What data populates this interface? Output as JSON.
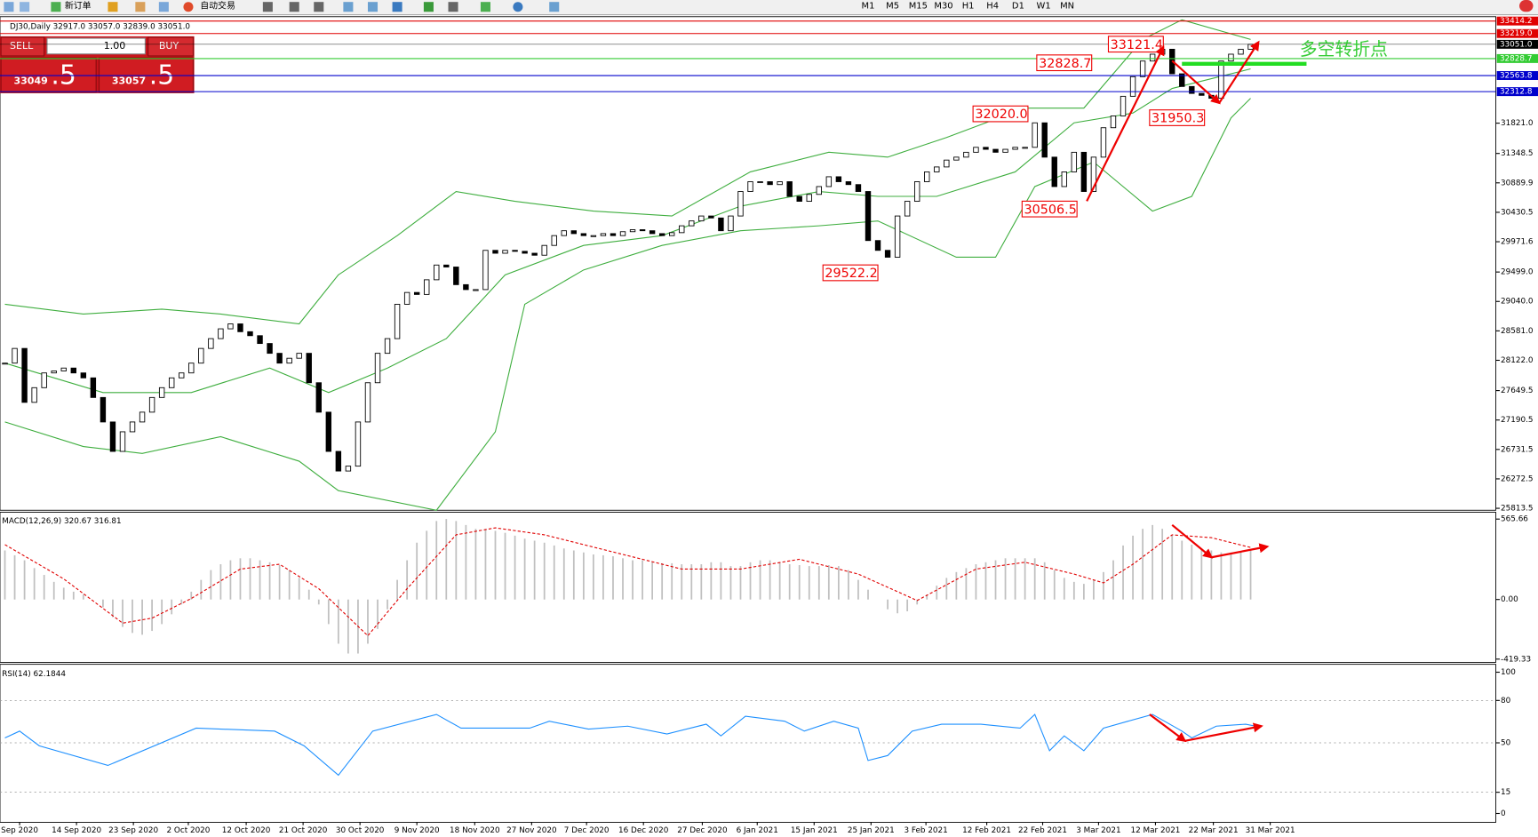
{
  "toolbar": {
    "new_order": "新订单",
    "auto_trading": "自动交易",
    "timeframes": [
      "M1",
      "M5",
      "M15",
      "M30",
      "H1",
      "H4",
      "D1",
      "W1",
      "MN"
    ]
  },
  "trade_panel": {
    "sell": "SELL",
    "lots": "1.00",
    "buy": "BUY",
    "bid_main": "33049",
    "bid_frac": ".5",
    "ask_main": "33057",
    "ask_frac": ".5"
  },
  "chart_data": [
    {
      "type": "candlestick",
      "title": "DJ30,Daily  32917.0 33057.0 32839.0 33051.0",
      "close": [
        28078,
        28307,
        27466,
        27695,
        27925,
        27956,
        28001,
        27925,
        27848,
        27542,
        27160,
        26701,
        27007,
        27160,
        27313,
        27542,
        27695,
        27848,
        27925,
        28078,
        28307,
        28460,
        28613,
        28690,
        28568,
        28506,
        28384,
        28231,
        28078,
        28154,
        28231,
        27772,
        27313,
        26701,
        26395,
        26471,
        27160,
        27772,
        28231,
        28460,
        28996,
        29180,
        29149,
        29378,
        29608,
        29577,
        29302,
        29225,
        29225,
        29837,
        29792,
        29837,
        29822,
        29792,
        29761,
        29914,
        30067,
        30143,
        30098,
        30067,
        30067,
        30098,
        30067,
        30128,
        30159,
        30143,
        30098,
        30067,
        30113,
        30220,
        30296,
        30373,
        30342,
        30143,
        30373,
        30755,
        30908,
        30908,
        30863,
        30908,
        30679,
        30602,
        30710,
        30832,
        30985,
        30908,
        30863,
        30755,
        29990,
        29837,
        29730,
        30373,
        30602,
        30908,
        31061,
        31138,
        31245,
        31291,
        31367,
        31444,
        31413,
        31367,
        31413,
        31444,
        31444,
        31826,
        31291,
        30832,
        31061,
        31367,
        30755,
        31291,
        31750,
        31934,
        32240,
        32546,
        32790,
        32897,
        32974,
        32591,
        32393,
        32285,
        32255,
        32209,
        32790,
        32897,
        32974,
        33051
      ],
      "bands": [
        {
          "color": "#3fae3f",
          "x": [
            0,
            8,
            16,
            22,
            30,
            34,
            40,
            46,
            52,
            60,
            68,
            76,
            84,
            90,
            96,
            104,
            110,
            116,
            120,
            127
          ],
          "values": [
            28996,
            28843,
            28920,
            28843,
            28690,
            29455,
            30067,
            30755,
            30602,
            30449,
            30373,
            31061,
            31367,
            31291,
            31597,
            32056,
            32056,
            33127,
            33433,
            33127
          ]
        },
        {
          "color": "#3fae3f",
          "x": [
            0,
            10,
            19,
            27,
            33,
            39,
            45,
            51,
            59,
            67,
            75,
            83,
            89,
            95,
            103,
            109,
            115,
            119,
            127
          ],
          "values": [
            28078,
            27619,
            27619,
            28001,
            27619,
            28001,
            28460,
            29455,
            29914,
            30067,
            30526,
            30755,
            30679,
            30679,
            31061,
            31826,
            31979,
            32362,
            32668
          ]
        },
        {
          "color": "#3fae3f",
          "x": [
            0,
            8,
            14,
            22,
            30,
            34,
            44,
            50,
            53,
            59,
            67,
            75,
            83,
            89,
            97,
            101,
            105,
            111,
            117,
            121,
            125,
            127
          ],
          "values": [
            27160,
            26777,
            26670,
            26930,
            26548,
            26089,
            25783,
            27007,
            28996,
            29531,
            29914,
            30143,
            30220,
            30296,
            29730,
            29730,
            30832,
            31215,
            30449,
            30679,
            31903,
            32209
          ]
        }
      ],
      "ylim": [
        25783,
        33436
      ],
      "yticks": [
        {
          "value": 31821.0,
          "label": "31821.0"
        },
        {
          "value": 31348.5,
          "label": "31348.5"
        },
        {
          "value": 30889.9,
          "label": "30889.9"
        },
        {
          "value": 30430.5,
          "label": "30430.5"
        },
        {
          "value": 29971.6,
          "label": "29971.6"
        },
        {
          "value": 29499.0,
          "label": "29499.0"
        },
        {
          "value": 29040.0,
          "label": "29040.0"
        },
        {
          "value": 28581.0,
          "label": "28581.0"
        },
        {
          "value": 28122.0,
          "label": "28122.0"
        },
        {
          "value": 27649.5,
          "label": "27649.5"
        },
        {
          "value": 27190.5,
          "label": "27190.5"
        },
        {
          "value": 26731.5,
          "label": "26731.5"
        },
        {
          "value": 26272.5,
          "label": "26272.5"
        },
        {
          "value": 25813.5,
          "label": "25813.5"
        }
      ],
      "levels": [
        {
          "value": 33414.2,
          "label": "33414.2",
          "color": "#e00000"
        },
        {
          "value": 33219.0,
          "label": "33219.0",
          "color": "#e00000"
        },
        {
          "value": 33051.0,
          "label": "33051.0",
          "color": "#000000"
        },
        {
          "value": 32828.7,
          "label": "32828.7",
          "color": "#33cc33"
        },
        {
          "value": 32563.8,
          "label": "32563.8",
          "color": "#0000cc"
        },
        {
          "value": 32312.8,
          "label": "32312.8",
          "color": "#0000cc"
        }
      ],
      "annotations": [
        "33121.4",
        "32828.7",
        "32020.0",
        "31950.3",
        "30506.5",
        "29522.2"
      ],
      "note_text": "多空转折点",
      "xticks": [
        {
          "value": 1.5,
          "label": "Sep 2020"
        },
        {
          "value": 7.3,
          "label": "14 Sep 2020"
        },
        {
          "value": 13.1,
          "label": "23 Sep 2020"
        },
        {
          "value": 18.7,
          "label": "2 Oct 2020"
        },
        {
          "value": 24.6,
          "label": "12 Oct 2020"
        },
        {
          "value": 30.4,
          "label": "21 Oct 2020"
        },
        {
          "value": 36.2,
          "label": "30 Oct 2020"
        },
        {
          "value": 42,
          "label": "9 Nov 2020"
        },
        {
          "value": 47.9,
          "label": "18 Nov 2020"
        },
        {
          "value": 53.7,
          "label": "27 Nov 2020"
        },
        {
          "value": 59.3,
          "label": "7 Dec 2020"
        },
        {
          "value": 65.1,
          "label": "16 Dec 2020"
        },
        {
          "value": 71.1,
          "label": "27 Dec 2020"
        },
        {
          "value": 76.7,
          "label": "6 Jan 2021"
        },
        {
          "value": 82.5,
          "label": "15 Jan 2021"
        },
        {
          "value": 88.3,
          "label": "25 Jan 2021"
        },
        {
          "value": 93.9,
          "label": "3 Feb 2021"
        },
        {
          "value": 100.1,
          "label": "12 Feb 2021"
        },
        {
          "value": 105.8,
          "label": "22 Feb 2021"
        },
        {
          "value": 111.5,
          "label": "3 Mar 2021"
        },
        {
          "value": 117.3,
          "label": "12 Mar 2021"
        },
        {
          "value": 123.2,
          "label": "22 Mar 2021"
        },
        {
          "value": 129,
          "label": "31 Mar 2021"
        }
      ]
    },
    {
      "type": "macd",
      "title": "MACD(12,26,9) 320.67 316.81",
      "histogram": [
        345,
        311,
        276,
        221,
        173,
        124,
        83,
        55,
        35,
        0,
        -55,
        -124,
        -193,
        -235,
        -248,
        -221,
        -173,
        -104,
        -35,
        55,
        138,
        207,
        248,
        276,
        290,
        290,
        276,
        262,
        242,
        207,
        152,
        69,
        -35,
        -173,
        -311,
        -380,
        -380,
        -311,
        -207,
        -69,
        138,
        276,
        400,
        483,
        552,
        566,
        552,
        524,
        497,
        497,
        483,
        469,
        449,
        428,
        414,
        400,
        380,
        359,
        345,
        331,
        317,
        311,
        304,
        290,
        276,
        276,
        262,
        255,
        255,
        248,
        248,
        248,
        262,
        262,
        235,
        235,
        262,
        276,
        276,
        262,
        248,
        242,
        235,
        235,
        242,
        235,
        207,
        138,
        69,
        0,
        -69,
        -97,
        -83,
        -35,
        35,
        97,
        152,
        193,
        221,
        248,
        262,
        276,
        290,
        290,
        290,
        290,
        262,
        207,
        152,
        124,
        110,
        138,
        193,
        276,
        380,
        449,
        497,
        524,
        497,
        455,
        414,
        386,
        359,
        345,
        331,
        331,
        331,
        345
      ],
      "hist_color": "#c0c0c0",
      "signal": {
        "color": "#e00000",
        "x": [
          0,
          6,
          12,
          15,
          19,
          24,
          28,
          32,
          37,
          41,
          46,
          50,
          55,
          63,
          69,
          75,
          81,
          87,
          93,
          99,
          104,
          109,
          112,
          115,
          119,
          123,
          127
        ],
        "values": [
          386,
          145,
          -166,
          -131,
          7,
          214,
          248,
          76,
          -255,
          76,
          455,
          504,
          455,
          317,
          214,
          214,
          283,
          179,
          -7,
          214,
          262,
          179,
          117,
          248,
          455,
          435,
          366
        ]
      },
      "ylim": [
        -442,
        614
      ],
      "yticks": [
        565.66,
        {
          "value": 0,
          "label": "0.00"
        },
        -419.33
      ]
    },
    {
      "type": "rsi",
      "title": "RSI(14) 62.1844",
      "color": "#1e90ff",
      "x": [
        0,
        1.5,
        3.5,
        10.5,
        19.5,
        27.5,
        30.5,
        34,
        37.5,
        44,
        46.5,
        53.5,
        55.5,
        59.5,
        63.5,
        67.5,
        71.5,
        73,
        75.5,
        79.5,
        81.5,
        84.5,
        87,
        88,
        90,
        92.5,
        95.5,
        99.5,
        103.5,
        105,
        106.5,
        108,
        110,
        112,
        114.5,
        117,
        120,
        121,
        123.5,
        126.5,
        127.5
      ],
      "values": [
        53.5,
        58.3,
        47.9,
        34.0,
        60.4,
        58.3,
        47.9,
        27.1,
        58.3,
        70.1,
        60.4,
        60.4,
        65.3,
        59.7,
        61.8,
        56.3,
        63.2,
        54.9,
        68.8,
        65.3,
        58.3,
        65.3,
        60.4,
        37.5,
        41.0,
        58.3,
        63.2,
        63.2,
        60.4,
        70.1,
        44.4,
        54.9,
        44.4,
        60.4,
        65.3,
        70.1,
        58.3,
        53.5,
        61.8,
        63.2,
        61.8
      ],
      "ylim": [
        -6.25,
        104.9
      ],
      "yticks": [
        100,
        80,
        50,
        15,
        0
      ]
    }
  ]
}
